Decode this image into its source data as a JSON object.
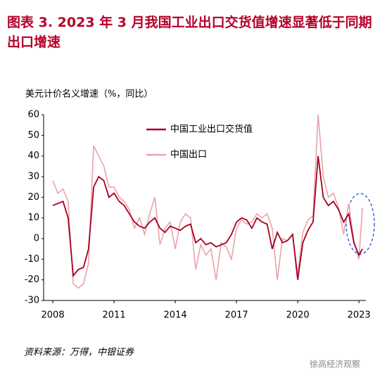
{
  "chart_data": {
    "type": "line",
    "title": "图表 3.   2023 年 3 月我国工业出口交货值增速显著低于同期出口增速",
    "y_label": "美元计价名义增速（%，同比）",
    "source": "资料来源：万得，中银证券",
    "watermark": "徐高经济观察",
    "x": [
      2008,
      2008.25,
      2008.5,
      2008.75,
      2009,
      2009.25,
      2009.5,
      2009.75,
      2010,
      2010.25,
      2010.5,
      2010.75,
      2011,
      2011.25,
      2011.5,
      2011.75,
      2012,
      2012.25,
      2012.5,
      2012.75,
      2013,
      2013.25,
      2013.5,
      2013.75,
      2014,
      2014.25,
      2014.5,
      2014.75,
      2015,
      2015.25,
      2015.5,
      2015.75,
      2016,
      2016.25,
      2016.5,
      2016.75,
      2017,
      2017.25,
      2017.5,
      2017.75,
      2018,
      2018.25,
      2018.5,
      2018.75,
      2019,
      2019.25,
      2019.5,
      2019.75,
      2020,
      2020.25,
      2020.5,
      2020.75,
      2021,
      2021.25,
      2021.5,
      2021.75,
      2022,
      2022.25,
      2022.5,
      2022.75,
      2023,
      2023.17
    ],
    "series": [
      {
        "name": "中国工业出口交货值",
        "color": "#a50021",
        "values": [
          16,
          17,
          18,
          10,
          -18,
          -15,
          -14,
          -5,
          25,
          30,
          28,
          20,
          22,
          18,
          16,
          12,
          8,
          6,
          5,
          8,
          10,
          5,
          3,
          6,
          5,
          4,
          6,
          7,
          -2,
          0,
          -3,
          -2,
          -4,
          -3,
          -2,
          2,
          8,
          10,
          9,
          5,
          10,
          8,
          7,
          -5,
          3,
          -2,
          -1,
          2,
          -20,
          -2,
          4,
          8,
          40,
          20,
          16,
          18,
          14,
          8,
          12,
          -2,
          -8,
          -5
        ]
      },
      {
        "name": "中国出口",
        "color": "#eaa3ab",
        "values": [
          28,
          22,
          24,
          18,
          -22,
          -24,
          -22,
          -12,
          45,
          40,
          35,
          25,
          25,
          20,
          18,
          14,
          5,
          10,
          2,
          12,
          20,
          -3,
          5,
          8,
          -5,
          8,
          12,
          10,
          -15,
          -3,
          -8,
          -5,
          -20,
          -2,
          -4,
          -10,
          5,
          9,
          7,
          8,
          12,
          10,
          12,
          5,
          -20,
          0,
          -1,
          2,
          -17,
          3,
          9,
          11,
          60,
          30,
          20,
          22,
          15,
          2,
          17,
          -1,
          -10,
          15
        ]
      }
    ],
    "xlim": [
      2007.55,
      2023.34
    ],
    "xticks": [
      2008,
      2011,
      2014,
      2017,
      2020,
      2023
    ],
    "ylim": [
      -30,
      60
    ],
    "yticks": [
      -30,
      -20,
      -10,
      0,
      10,
      20,
      30,
      40,
      50,
      60
    ],
    "grid": false,
    "legend": "top"
  }
}
